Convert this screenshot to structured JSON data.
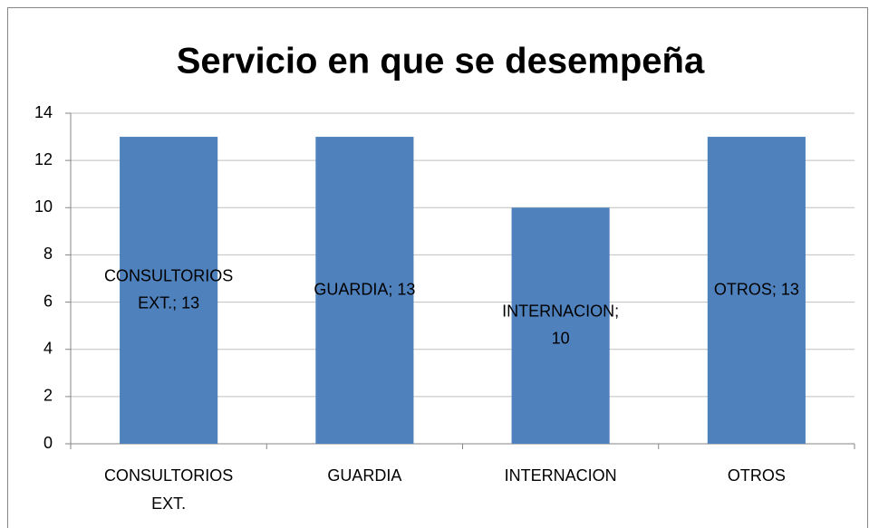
{
  "chart_data": {
    "type": "bar",
    "title": "Servicio en que se desempeña",
    "categories": [
      "CONSULTORIOS EXT.",
      "GUARDIA",
      "INTERNACION",
      "OTROS"
    ],
    "values": [
      13,
      13,
      10,
      13
    ],
    "value_labels": [
      "CONSULTORIOS EXT.; 13",
      "GUARDIA; 13",
      "INTERNACION; 10",
      "OTROS; 13"
    ],
    "color": "#4f81bd",
    "ylim": [
      0,
      14
    ],
    "yticks": [
      0,
      2,
      4,
      6,
      8,
      10,
      12,
      14
    ],
    "grid": true
  }
}
